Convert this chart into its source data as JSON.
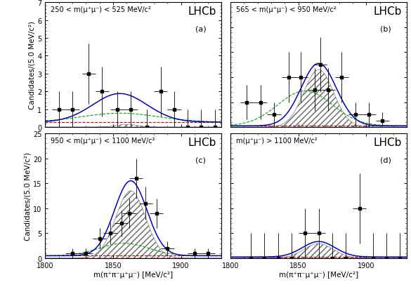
{
  "panels": [
    {
      "label": "(a)",
      "condition": "250 < m(μ⁺μ⁻) < 525 MeV/c²",
      "ylim": [
        0,
        7
      ],
      "yticks": [
        0,
        1,
        2,
        3,
        4,
        5,
        6,
        7
      ],
      "data_x": [
        1810,
        1820,
        1832,
        1842,
        1853,
        1863,
        1875,
        1885,
        1895,
        1905,
        1915,
        1925
      ],
      "data_y": [
        1.0,
        1.0,
        3.0,
        2.0,
        1.0,
        1.0,
        0.0,
        2.0,
        1.0,
        0.0,
        0.0,
        0.0
      ],
      "data_yerr": [
        1.0,
        1.0,
        1.7,
        1.4,
        1.0,
        1.0,
        1.0,
        1.4,
        1.0,
        1.0,
        1.0,
        1.0
      ],
      "data_xerr": 5.0,
      "total_amp": 1.6,
      "total_peak": 1855,
      "total_sigma": 20,
      "bkg_amp": 0.28,
      "green_amp": 0.5,
      "green_peak": 1855,
      "green_sigma": 28,
      "fill_amp": 0.15,
      "fill_peak": 1860,
      "fill_sigma": 8
    },
    {
      "label": "(b)",
      "condition": "565 < m(μ⁺μ⁻) < 950 MeV/c²",
      "ylim": [
        0,
        10
      ],
      "yticks": [
        0,
        2,
        4,
        6,
        8,
        10
      ],
      "data_x": [
        1812,
        1822,
        1832,
        1843,
        1852,
        1862,
        1866,
        1872,
        1882,
        1892,
        1902,
        1912
      ],
      "data_y": [
        2.0,
        2.0,
        1.0,
        4.0,
        4.0,
        3.0,
        5.0,
        3.0,
        4.0,
        1.0,
        1.0,
        0.5
      ],
      "data_yerr": [
        1.4,
        1.4,
        1.0,
        2.0,
        2.0,
        1.7,
        2.2,
        1.7,
        2.0,
        1.0,
        1.0,
        0.7
      ],
      "data_xerr": 5.0,
      "total_amp": 5.0,
      "total_peak": 1865,
      "total_sigma": 13,
      "bkg_amp": 0.1,
      "green_amp": 2.8,
      "green_peak": 1855,
      "green_sigma": 20,
      "fill_amp": 4.6,
      "fill_peak": 1865,
      "fill_sigma": 11
    },
    {
      "label": "(c)",
      "condition": "950 < m(μ⁺μ⁻) < 1100 MeV/c²",
      "ylim": [
        0,
        25
      ],
      "yticks": [
        0,
        5,
        10,
        15,
        20,
        25
      ],
      "data_x": [
        1820,
        1830,
        1840,
        1848,
        1856,
        1862,
        1867,
        1874,
        1882,
        1890,
        1910,
        1920
      ],
      "data_y": [
        1.0,
        1.0,
        4.0,
        5.0,
        7.0,
        9.0,
        16.0,
        11.0,
        9.0,
        2.0,
        1.0,
        1.0
      ],
      "data_yerr": [
        1.0,
        1.0,
        2.0,
        2.2,
        2.6,
        3.0,
        4.0,
        3.3,
        3.0,
        1.4,
        1.0,
        1.0
      ],
      "data_xerr": 5.0,
      "total_amp": 15.0,
      "total_peak": 1863,
      "total_sigma": 12,
      "bkg_amp": 0.5,
      "green_amp": 2.5,
      "green_peak": 1858,
      "green_sigma": 18,
      "fill_amp": 13.5,
      "fill_peak": 1863,
      "fill_sigma": 11
    },
    {
      "label": "(d)",
      "condition": "m(μ⁺μ⁻) > 1100 MeV/c²",
      "ylim": [
        0,
        5
      ],
      "yticks": [
        0,
        1,
        2,
        3,
        4,
        5
      ],
      "data_x": [
        1815,
        1825,
        1835,
        1845,
        1855,
        1865,
        1875,
        1885,
        1895,
        1905,
        1915,
        1925
      ],
      "data_y": [
        0.0,
        0.0,
        0.0,
        0.0,
        1.0,
        1.0,
        0.0,
        0.0,
        2.0,
        0.0,
        0.0,
        0.0
      ],
      "data_yerr": [
        1.0,
        1.0,
        1.0,
        1.0,
        1.0,
        1.0,
        1.0,
        1.0,
        1.4,
        1.0,
        1.0,
        1.0
      ],
      "data_xerr": 5.0,
      "total_amp": 0.62,
      "total_peak": 1865,
      "total_sigma": 12,
      "bkg_amp": 0.05,
      "green_amp": 0.0,
      "green_peak": 1865,
      "green_sigma": 15,
      "fill_amp": 0.58,
      "fill_peak": 1865,
      "fill_sigma": 11
    }
  ],
  "xmin": 1800,
  "xmax": 1930,
  "xticks": [
    1800,
    1850,
    1900
  ],
  "xlabel": "m(π⁺π⁻μ⁺μ⁻) [MeV/c²]",
  "ylabel": "Candidates/(5.0 MeV/c²)",
  "blue_color": "#0000cc",
  "green_color": "#00aa00",
  "red_color": "#cc0000",
  "lhcb_fontsize": 11,
  "label_fontsize": 8,
  "condition_fontsize": 7,
  "tick_fontsize": 7,
  "axis_label_fontsize": 7.5
}
